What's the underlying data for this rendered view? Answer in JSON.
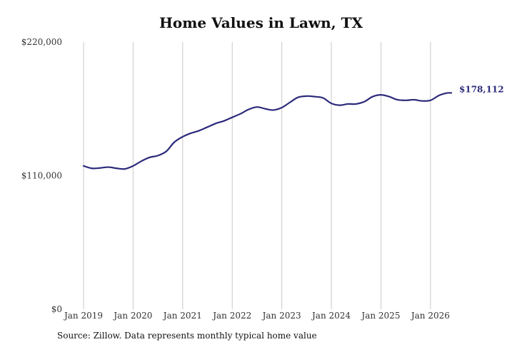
{
  "chart_data": {
    "type": "line",
    "title": "Home Values in Lawn, TX",
    "source": "Source: Zillow. Data represents monthly typical home value",
    "y_ticks": [
      {
        "value": 220000,
        "label": "$220,000"
      },
      {
        "value": 110000,
        "label": "$110,000"
      },
      {
        "value": 0,
        "label": "$0"
      }
    ],
    "x_ticks": [
      {
        "value": 2019,
        "label": "Jan 2019"
      },
      {
        "value": 2020,
        "label": "Jan 2020"
      },
      {
        "value": 2021,
        "label": "Jan 2021"
      },
      {
        "value": 2022,
        "label": "Jan 2022"
      },
      {
        "value": 2023,
        "label": "Jan 2023"
      },
      {
        "value": 2024,
        "label": "Jan 2024"
      },
      {
        "value": 2025,
        "label": "Jan 2025"
      },
      {
        "value": 2026,
        "label": "Jan 2026"
      }
    ],
    "ylim": [
      0,
      220000
    ],
    "xlim": [
      2019,
      2026.42
    ],
    "grid": "vertical",
    "line_color": "#2c2a7a",
    "grid_color": "#c8c8c8",
    "end_label": "$178,112",
    "series": [
      {
        "points": [
          [
            2019.0,
            118000
          ],
          [
            2019.17,
            116000
          ],
          [
            2019.33,
            116300
          ],
          [
            2019.5,
            117000
          ],
          [
            2019.67,
            116000
          ],
          [
            2019.83,
            115500
          ],
          [
            2020.0,
            118000
          ],
          [
            2020.17,
            122000
          ],
          [
            2020.33,
            125000
          ],
          [
            2020.5,
            126500
          ],
          [
            2020.67,
            130000
          ],
          [
            2020.83,
            137500
          ],
          [
            2021.0,
            142000
          ],
          [
            2021.17,
            145000
          ],
          [
            2021.33,
            147000
          ],
          [
            2021.5,
            150000
          ],
          [
            2021.67,
            153000
          ],
          [
            2021.83,
            155000
          ],
          [
            2022.0,
            158000
          ],
          [
            2022.17,
            161000
          ],
          [
            2022.33,
            164500
          ],
          [
            2022.5,
            166500
          ],
          [
            2022.67,
            165000
          ],
          [
            2022.83,
            164000
          ],
          [
            2023.0,
            166000
          ],
          [
            2023.17,
            170500
          ],
          [
            2023.33,
            174500
          ],
          [
            2023.5,
            175500
          ],
          [
            2023.67,
            175000
          ],
          [
            2023.83,
            174000
          ],
          [
            2024.0,
            169500
          ],
          [
            2024.17,
            168000
          ],
          [
            2024.33,
            169000
          ],
          [
            2024.5,
            169000
          ],
          [
            2024.67,
            171000
          ],
          [
            2024.83,
            175000
          ],
          [
            2025.0,
            176500
          ],
          [
            2025.17,
            175000
          ],
          [
            2025.33,
            172500
          ],
          [
            2025.5,
            172000
          ],
          [
            2025.67,
            172500
          ],
          [
            2025.83,
            171500
          ],
          [
            2026.0,
            172000
          ],
          [
            2026.17,
            176000
          ],
          [
            2026.33,
            178000
          ],
          [
            2026.42,
            178112
          ]
        ]
      }
    ]
  }
}
